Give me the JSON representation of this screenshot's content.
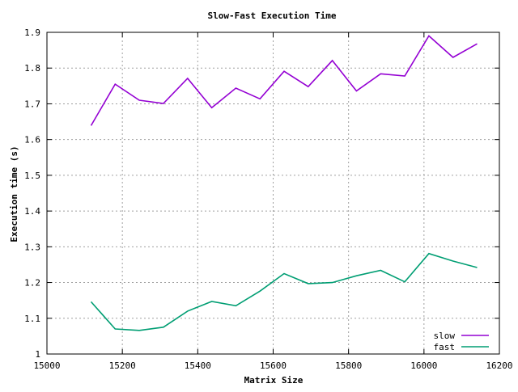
{
  "chart_data": {
    "type": "line",
    "title": "Slow-Fast Execution Time",
    "xlabel": "Matrix Size",
    "ylabel": "Execution time (s)",
    "xlim": [
      15000,
      16200
    ],
    "ylim": [
      1,
      1.9
    ],
    "xticks": [
      "15000",
      "15200",
      "15400",
      "15600",
      "15800",
      "16000",
      "16200"
    ],
    "yticks": [
      "1",
      "1.1",
      "1.2",
      "1.3",
      "1.4",
      "1.5",
      "1.6",
      "1.7",
      "1.8",
      "1.9"
    ],
    "grid": true,
    "legend_position": "bottom-right",
    "x": [
      15117,
      15181,
      15245,
      15309,
      15373,
      15437,
      15501,
      15565,
      15629,
      15693,
      15757,
      15821,
      15885,
      15949,
      16013,
      16077,
      16141
    ],
    "series": [
      {
        "name": "slow",
        "color": "#9400d3",
        "values": [
          1.639,
          1.755,
          1.71,
          1.701,
          1.771,
          1.689,
          1.744,
          1.714,
          1.791,
          1.748,
          1.821,
          1.736,
          1.784,
          1.778,
          1.89,
          1.83,
          1.868
        ]
      },
      {
        "name": "fast",
        "color": "#009e73",
        "values": [
          1.146,
          1.07,
          1.066,
          1.075,
          1.12,
          1.147,
          1.135,
          1.176,
          1.225,
          1.197,
          1.2,
          1.219,
          1.234,
          1.202,
          1.281,
          1.26,
          1.242
        ]
      }
    ]
  }
}
